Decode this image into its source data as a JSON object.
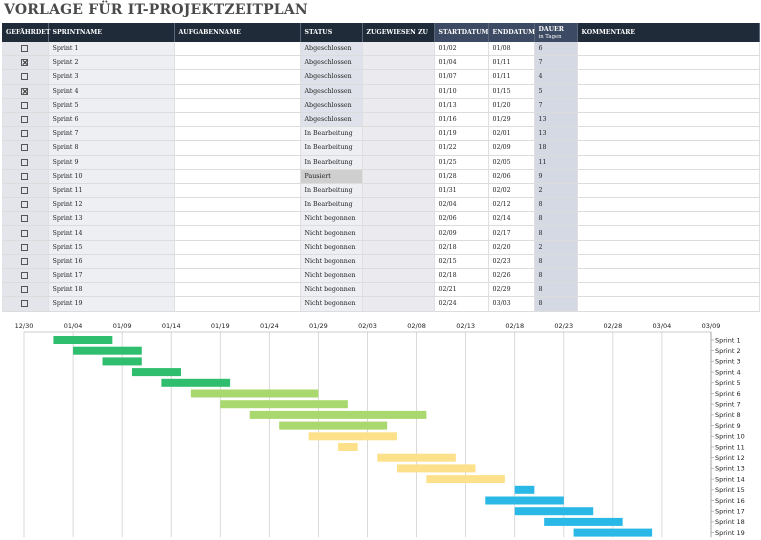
{
  "title": "VORLAGE FÜR IT-PROJEKTZEITPLAN",
  "headers": {
    "flag": "GEFÄHRDET",
    "sprint": "SPRINTNAME",
    "task": "AUFGABENNAME",
    "status": "STATUS",
    "assigned": "ZUGEWIESEN ZU",
    "start": "STARTDATUM",
    "end": "ENDDATUM",
    "duration": "DAUER",
    "duration_sub": "in Tagen",
    "comments": "KOMMENTARE"
  },
  "rows": [
    {
      "flag": false,
      "sprint": "Sprint 1",
      "status": "Abgeschlossen",
      "start": "01/02",
      "end": "01/08",
      "duration": "6"
    },
    {
      "flag": true,
      "sprint": "Sprint 2",
      "status": "Abgeschlossen",
      "start": "01/04",
      "end": "01/11",
      "duration": "7"
    },
    {
      "flag": false,
      "sprint": "Sprint 3",
      "status": "Abgeschlossen",
      "start": "01/07",
      "end": "01/11",
      "duration": "4"
    },
    {
      "flag": true,
      "sprint": "Sprint 4",
      "status": "Abgeschlossen",
      "start": "01/10",
      "end": "01/15",
      "duration": "5"
    },
    {
      "flag": false,
      "sprint": "Sprint 5",
      "status": "Abgeschlossen",
      "start": "01/13",
      "end": "01/20",
      "duration": "7"
    },
    {
      "flag": false,
      "sprint": "Sprint 6",
      "status": "Abgeschlossen",
      "start": "01/16",
      "end": "01/29",
      "duration": "13"
    },
    {
      "flag": false,
      "sprint": "Sprint 7",
      "status": "In Bearbeitung",
      "start": "01/19",
      "end": "02/01",
      "duration": "13"
    },
    {
      "flag": false,
      "sprint": "Sprint 8",
      "status": "In Bearbeitung",
      "start": "01/22",
      "end": "02/09",
      "duration": "18"
    },
    {
      "flag": false,
      "sprint": "Sprint 9",
      "status": "In Bearbeitung",
      "start": "01/25",
      "end": "02/05",
      "duration": "11"
    },
    {
      "flag": false,
      "sprint": "Sprint 10",
      "status": "Pausiert",
      "start": "01/28",
      "end": "02/06",
      "duration": "9"
    },
    {
      "flag": false,
      "sprint": "Sprint 11",
      "status": "In Bearbeitung",
      "start": "01/31",
      "end": "02/02",
      "duration": "2"
    },
    {
      "flag": false,
      "sprint": "Sprint 12",
      "status": "In Bearbeitung",
      "start": "02/04",
      "end": "02/12",
      "duration": "8"
    },
    {
      "flag": false,
      "sprint": "Sprint 13",
      "status": "Nicht begonnen",
      "start": "02/06",
      "end": "02/14",
      "duration": "8"
    },
    {
      "flag": false,
      "sprint": "Sprint 14",
      "status": "Nicht begonnen",
      "start": "02/09",
      "end": "02/17",
      "duration": "8"
    },
    {
      "flag": false,
      "sprint": "Sprint 15",
      "status": "Nicht begonnen",
      "start": "02/18",
      "end": "02/20",
      "duration": "2"
    },
    {
      "flag": false,
      "sprint": "Sprint 16",
      "status": "Nicht begonnen",
      "start": "02/15",
      "end": "02/23",
      "duration": "8"
    },
    {
      "flag": false,
      "sprint": "Sprint 17",
      "status": "Nicht begonnen",
      "start": "02/18",
      "end": "02/26",
      "duration": "8"
    },
    {
      "flag": false,
      "sprint": "Sprint 18",
      "status": "Nicht begonnen",
      "start": "02/21",
      "end": "02/29",
      "duration": "8"
    },
    {
      "flag": false,
      "sprint": "Sprint 19",
      "status": "Nicht begonnen",
      "start": "02/24",
      "end": "03/03",
      "duration": "8"
    }
  ],
  "chart_data": {
    "type": "bar",
    "orientation": "horizontal",
    "subtype": "gantt",
    "x_ticks": [
      "12/30",
      "01/04",
      "01/09",
      "01/14",
      "01/19",
      "01/24",
      "01/29",
      "02/03",
      "02/08",
      "02/13",
      "02/18",
      "02/23",
      "02/28",
      "03/04",
      "03/09"
    ],
    "x_range": [
      "12/30",
      "03/09"
    ],
    "categories": [
      "Sprint 1",
      "Sprint 2",
      "Sprint 3",
      "Sprint 4",
      "Sprint 5",
      "Sprint 6",
      "Sprint 7",
      "Sprint 8",
      "Sprint 9",
      "Sprint 10",
      "Sprint 11",
      "Sprint 12",
      "Sprint 13",
      "Sprint 14",
      "Sprint 15",
      "Sprint 16",
      "Sprint 17",
      "Sprint 18",
      "Sprint 19"
    ],
    "start": [
      "01/02",
      "01/04",
      "01/07",
      "01/10",
      "01/13",
      "01/16",
      "01/19",
      "01/22",
      "01/25",
      "01/28",
      "01/31",
      "02/04",
      "02/06",
      "02/09",
      "02/18",
      "02/15",
      "02/18",
      "02/21",
      "02/24"
    ],
    "end": [
      "01/08",
      "01/11",
      "01/11",
      "01/15",
      "01/20",
      "01/29",
      "02/01",
      "02/09",
      "02/05",
      "02/06",
      "02/02",
      "02/12",
      "02/14",
      "02/17",
      "02/20",
      "02/23",
      "02/26",
      "02/29",
      "03/03"
    ],
    "colors": [
      "#2fbe6d",
      "#2fbe6d",
      "#2fbe6d",
      "#2fbe6d",
      "#2fbe6d",
      "#a9d86e",
      "#a9d86e",
      "#a9d86e",
      "#a9d86e",
      "#fde08a",
      "#fde08a",
      "#fde08a",
      "#fde08a",
      "#fde08a",
      "#2ab8e6",
      "#2ab8e6",
      "#2ab8e6",
      "#2ab8e6",
      "#2ab8e6"
    ],
    "grid": true,
    "legend": "none"
  }
}
